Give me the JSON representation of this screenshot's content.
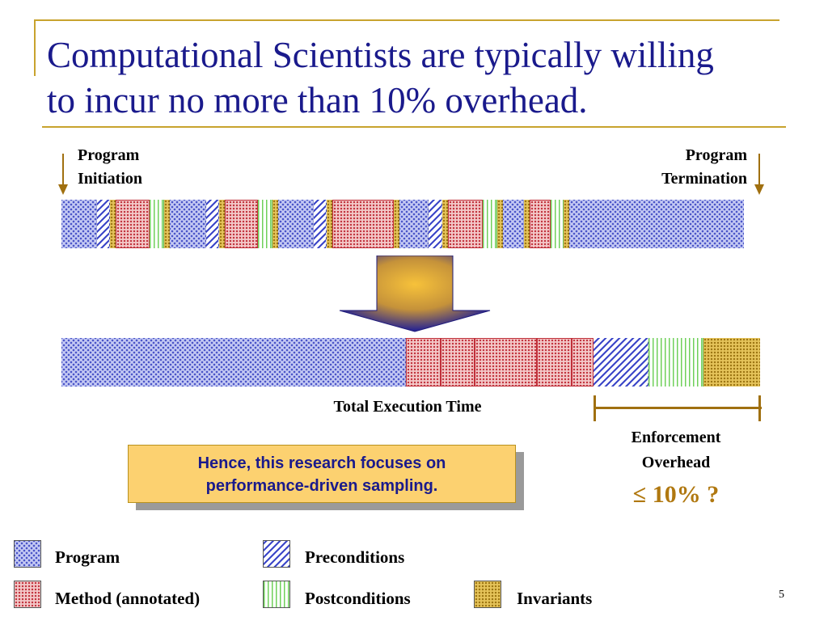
{
  "slide": {
    "title_line1": "Computational Scientists are typically willing",
    "title_line2": "to incur no more than 10% overhead.",
    "page_number": "5"
  },
  "diagram": {
    "start_label_1": "Program",
    "start_label_2": "Initiation",
    "end_label_1": "Program",
    "end_label_2": "Termination",
    "total_label": "Total Execution Time",
    "overhead_label_1": "Enforcement",
    "overhead_label_2": "Overhead",
    "overhead_value": "≤ 10% ?",
    "accent_color": "#a07010",
    "title_color": "#1a1a8c"
  },
  "callout": {
    "line1": "Hence, this research focuses on",
    "line2": "performance-driven sampling."
  },
  "legend": {
    "program": "Program",
    "preconditions": "Preconditions",
    "method": "Method (annotated)",
    "postconditions": "Postconditions",
    "invariants": "Invariants"
  }
}
